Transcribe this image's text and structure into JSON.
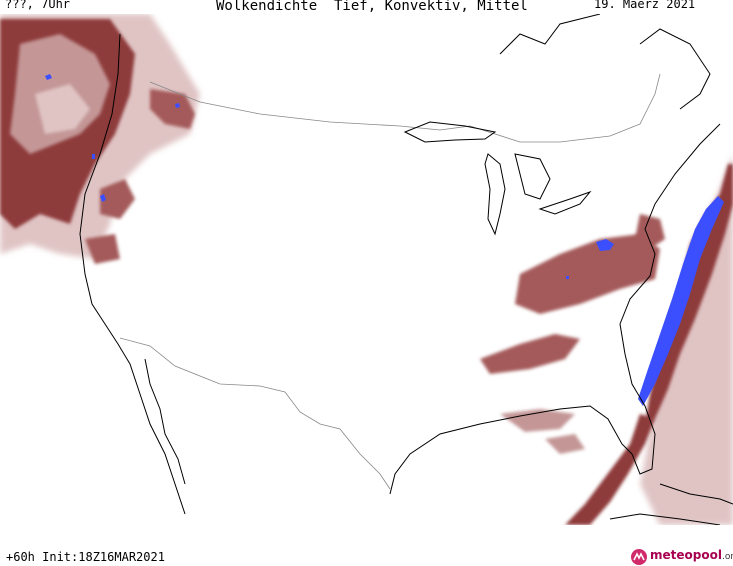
{
  "header": {
    "left": "???, 7Uhr",
    "title": "Wolkendichte  Tief, Konvektiv, Mittel",
    "date": "19. Maerz 2021"
  },
  "footer": {
    "init": "+60h Init:18Z16MAR2021",
    "brand": "meteopool",
    "brand_suffix": ".org"
  },
  "map": {
    "region": "contiguous United States",
    "colors": {
      "cloud_dense": "#8e3a3a",
      "cloud_medium": "#a45a5a",
      "cloud_light": "#c49696",
      "cloud_faint": "#e0c4c4",
      "convective": "#3b4fff",
      "coast": "#000000",
      "border": "#888888"
    }
  }
}
